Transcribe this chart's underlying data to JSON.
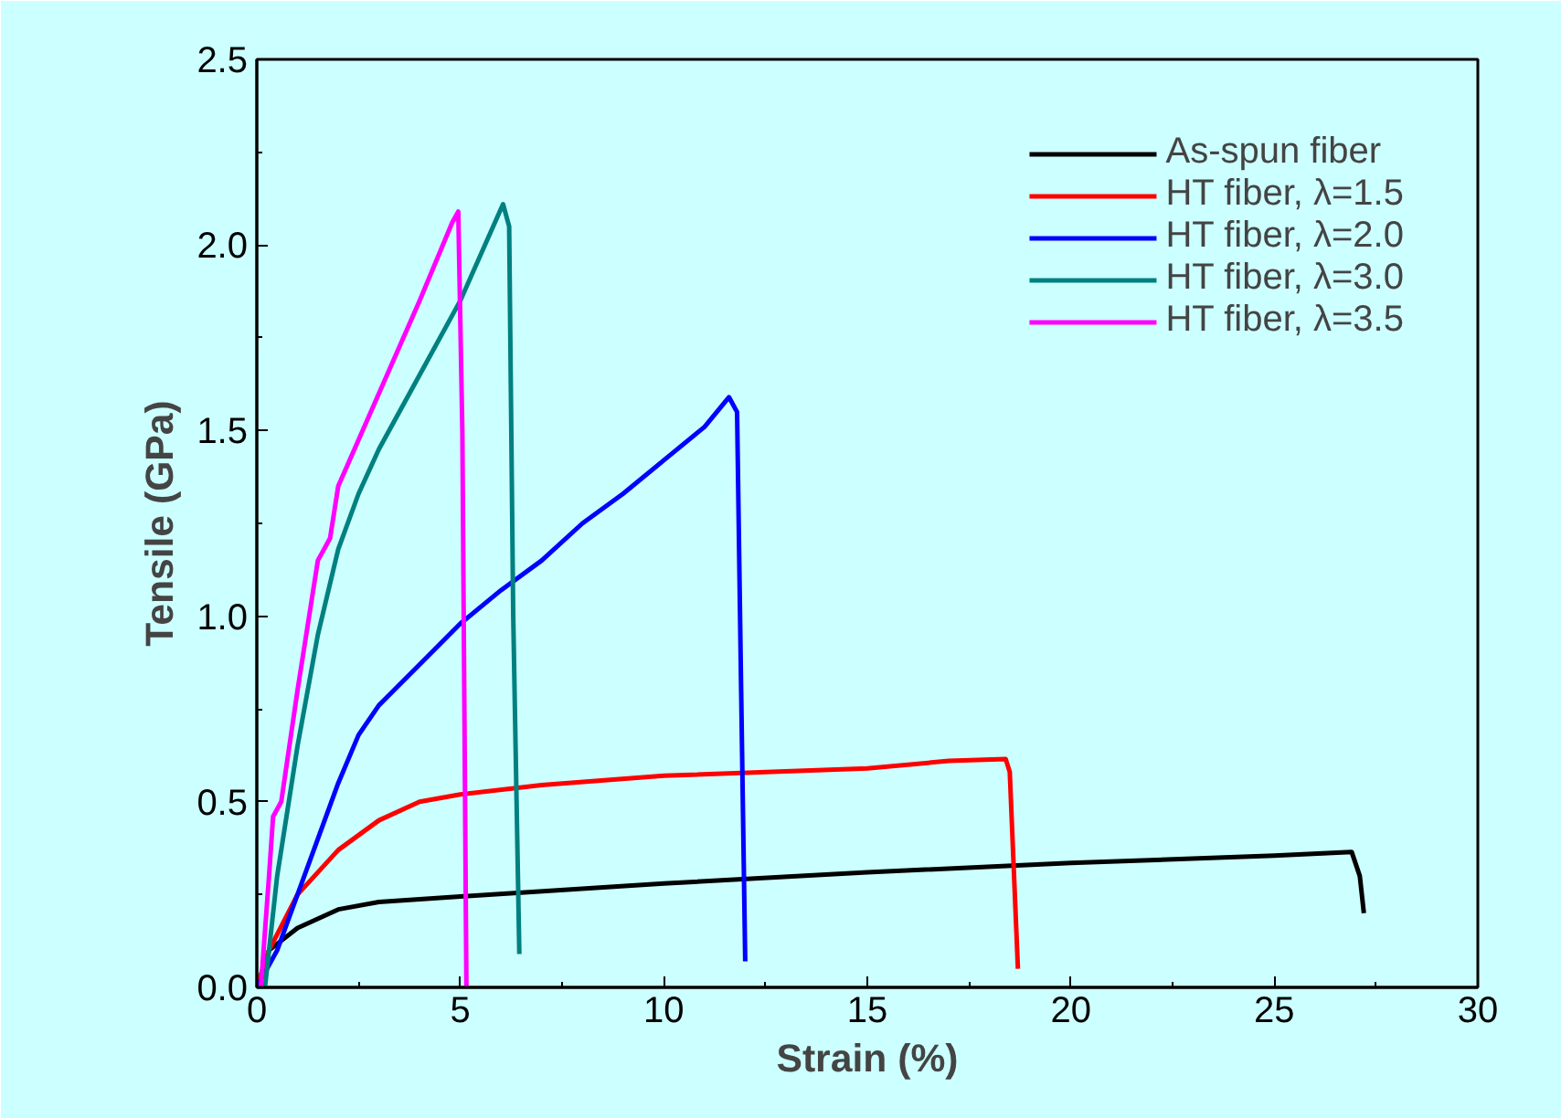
{
  "chart_data": {
    "type": "line",
    "xlabel": "Strain (%)",
    "ylabel": "Tensile (GPa)",
    "xlim": [
      0,
      30
    ],
    "ylim": [
      0,
      2.5
    ],
    "xticks": [
      0,
      5,
      10,
      15,
      20,
      25,
      30
    ],
    "yticks": [
      {
        "value": 0,
        "label": "0.0"
      },
      {
        "value": 0.5,
        "label": "0.5"
      },
      {
        "value": 1,
        "label": "1.0"
      },
      {
        "value": 1.5,
        "label": "1.5"
      },
      {
        "value": 2,
        "label": "2.0"
      },
      {
        "value": 2.5,
        "label": "2.5"
      }
    ],
    "grid": false,
    "legend": "top right",
    "marker": "none",
    "line_style": "solid",
    "series": [
      {
        "name": "As-spun fiber",
        "color": "#000000",
        "x": [
          0,
          0.3,
          1,
          2,
          3,
          5,
          10,
          15,
          20,
          25,
          26.9,
          27.1,
          27.2
        ],
        "values": [
          0,
          0.1,
          0.16,
          0.21,
          0.23,
          0.245,
          0.28,
          0.31,
          0.335,
          0.355,
          0.365,
          0.3,
          0.2
        ]
      },
      {
        "name": "HT fiber, λ=1.5",
        "color": "#ff0000",
        "x": [
          0,
          0.3,
          1,
          2,
          3,
          4,
          5,
          7,
          10,
          15,
          17,
          18.4,
          18.5,
          18.7
        ],
        "values": [
          0,
          0.1,
          0.25,
          0.37,
          0.45,
          0.5,
          0.52,
          0.545,
          0.57,
          0.59,
          0.61,
          0.615,
          0.58,
          0.05
        ]
      },
      {
        "name": "HT fiber, λ=2.0",
        "color": "#0000ff",
        "x": [
          0,
          0.5,
          1,
          2,
          2.5,
          3,
          4,
          5,
          6,
          7,
          8,
          9,
          10,
          11,
          11.6,
          11.8,
          11.9,
          12.0
        ],
        "values": [
          0,
          0.1,
          0.25,
          0.55,
          0.68,
          0.76,
          0.87,
          0.98,
          1.07,
          1.15,
          1.25,
          1.33,
          1.42,
          1.51,
          1.59,
          1.55,
          0.8,
          0.07
        ]
      },
      {
        "name": "HT fiber, λ=3.0",
        "color": "#008080",
        "x": [
          0.2,
          0.5,
          1,
          1.5,
          2,
          2.5,
          3,
          4,
          5,
          6.05,
          6.2,
          6.3,
          6.45
        ],
        "values": [
          0,
          0.3,
          0.65,
          0.95,
          1.18,
          1.33,
          1.45,
          1.65,
          1.85,
          2.11,
          2.05,
          1.0,
          0.09
        ]
      },
      {
        "name": "HT fiber, λ=3.5",
        "color": "#ff00ff",
        "x": [
          0.1,
          0.3,
          0.4,
          0.6,
          1,
          1.5,
          1.8,
          2,
          3,
          4,
          4.8,
          4.95,
          5.05,
          5.15
        ],
        "values": [
          0,
          0.3,
          0.46,
          0.5,
          0.8,
          1.15,
          1.21,
          1.35,
          1.6,
          1.85,
          2.06,
          2.09,
          1.5,
          0
        ]
      }
    ]
  }
}
